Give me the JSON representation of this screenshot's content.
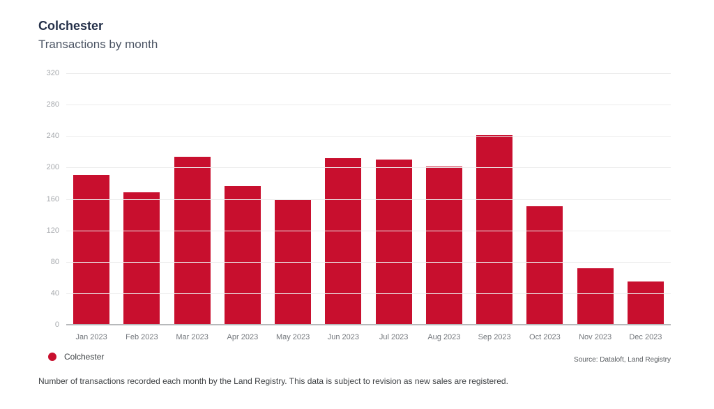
{
  "header": {
    "title": "Colchester",
    "subtitle": "Transactions by month"
  },
  "legend": {
    "label": "Colchester",
    "marker_color": "#c80f2e"
  },
  "source": "Source: Dataloft, Land Registry",
  "caption": "Number of transactions recorded each month by the Land Registry. This data is subject to revision as new sales are registered.",
  "chart_data": {
    "type": "bar",
    "title": "Colchester",
    "subtitle": "Transactions by month",
    "categories": [
      "Jan 2023",
      "Feb 2023",
      "Mar 2023",
      "Apr 2023",
      "May 2023",
      "Jun 2023",
      "Jul 2023",
      "Aug 2023",
      "Sep 2023",
      "Oct 2023",
      "Nov 2023",
      "Dec 2023"
    ],
    "values": [
      191,
      168,
      214,
      176,
      160,
      212,
      210,
      201,
      241,
      151,
      72,
      55
    ],
    "xlabel": "",
    "ylabel": "",
    "ylim": [
      0,
      320
    ],
    "yticks": [
      0,
      40,
      80,
      120,
      160,
      200,
      240,
      280,
      320
    ],
    "bar_color": "#c80f2e",
    "grid": "horizontal",
    "gridline_color": "#ededed",
    "legend_position": "bottom-left"
  }
}
